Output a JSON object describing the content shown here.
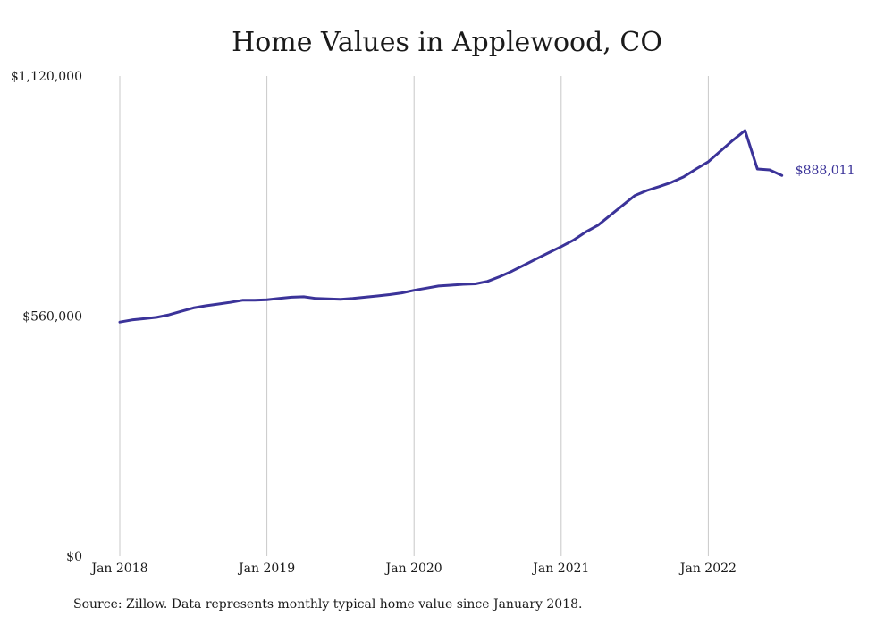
{
  "chart_data": {
    "type": "line",
    "title": "Home Values in Applewood, CO",
    "xlabel": "",
    "ylabel": "",
    "y_ticks": [
      {
        "value": 0,
        "label": "$0"
      },
      {
        "value": 560000,
        "label": "$560,000"
      },
      {
        "value": 1120000,
        "label": "$1,120,000"
      }
    ],
    "x_ticks": [
      {
        "value": "2018-01",
        "label": "Jan 2018"
      },
      {
        "value": "2019-01",
        "label": "Jan 2019"
      },
      {
        "value": "2020-01",
        "label": "Jan 2020"
      },
      {
        "value": "2021-01",
        "label": "Jan 2021"
      },
      {
        "value": "2022-01",
        "label": "Jan 2022"
      }
    ],
    "ylim": [
      0,
      1120000
    ],
    "xlim": [
      "2018-01",
      "2022-07"
    ],
    "grid": "vertical",
    "line_color": "#3b3399",
    "end_label": "$888,011",
    "series": [
      {
        "x": [
          "2018-01",
          "2018-02",
          "2018-03",
          "2018-04",
          "2018-05",
          "2018-06",
          "2018-07",
          "2018-08",
          "2018-09",
          "2018-10",
          "2018-11",
          "2018-12",
          "2019-01",
          "2019-02",
          "2019-03",
          "2019-04",
          "2019-05",
          "2019-06",
          "2019-07",
          "2019-08",
          "2019-09",
          "2019-10",
          "2019-11",
          "2019-12",
          "2020-01",
          "2020-02",
          "2020-03",
          "2020-04",
          "2020-05",
          "2020-06",
          "2020-07",
          "2020-08",
          "2020-09",
          "2020-10",
          "2020-11",
          "2020-12",
          "2021-01",
          "2021-02",
          "2021-03",
          "2021-04",
          "2021-05",
          "2021-06",
          "2021-07",
          "2021-08",
          "2021-09",
          "2021-10",
          "2021-11",
          "2021-12",
          "2022-01",
          "2022-02",
          "2022-03",
          "2022-04",
          "2022-05",
          "2022-06",
          "2022-07"
        ],
        "values": [
          546000,
          551000,
          554000,
          557000,
          563000,
          571000,
          579000,
          584000,
          588000,
          592000,
          597000,
          597000,
          598000,
          601000,
          604000,
          605000,
          601000,
          600000,
          599000,
          601000,
          604000,
          607000,
          610000,
          614000,
          620000,
          625000,
          630000,
          632000,
          634000,
          635000,
          641000,
          652000,
          665000,
          679000,
          694000,
          708000,
          722000,
          737000,
          756000,
          772000,
          795000,
          818000,
          841000,
          853000,
          862000,
          872000,
          885000,
          903000,
          920000,
          945000,
          970000,
          993000,
          903000,
          901000,
          888011
        ]
      }
    ]
  },
  "source": "Source: Zillow. Data represents monthly typical home value since January 2018."
}
